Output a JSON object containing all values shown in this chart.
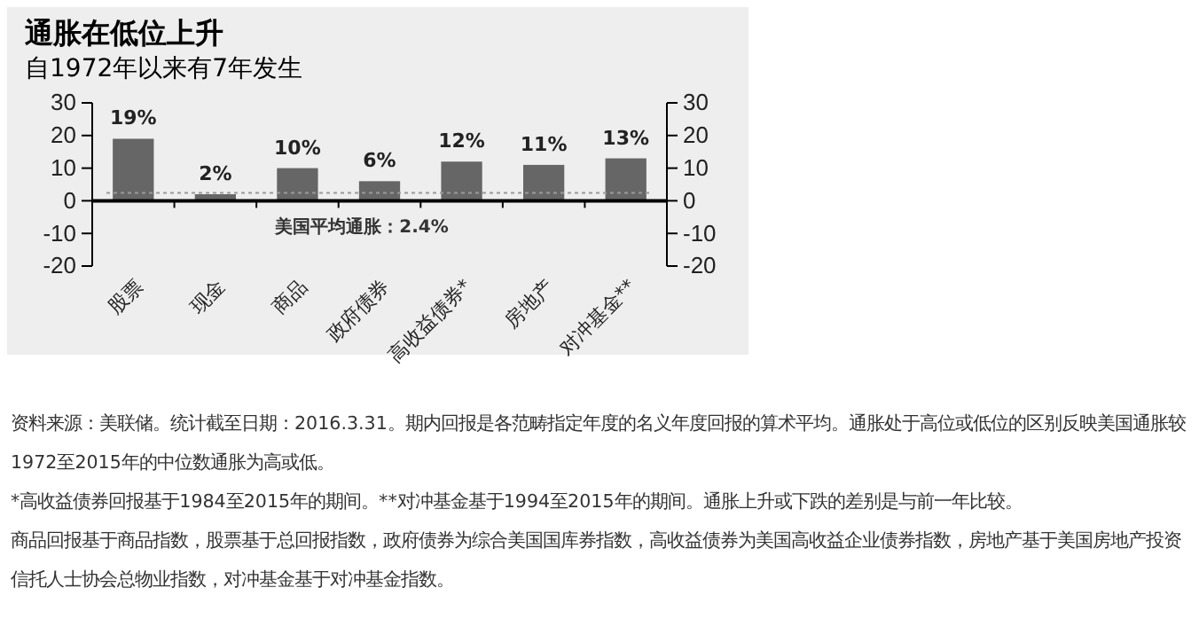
{
  "chart_data": {
    "type": "bar",
    "title": "通胀在低位上升",
    "subtitle": "自1972年以来有7年发生",
    "categories": [
      "股票",
      "现金",
      "商品",
      "政府债券",
      "高收益债券*",
      "房地产",
      "对冲基金**"
    ],
    "values": [
      19,
      2,
      10,
      6,
      12,
      11,
      13
    ],
    "value_labels": [
      "19%",
      "2%",
      "10%",
      "6%",
      "12%",
      "11%",
      "13%"
    ],
    "color": "#666666",
    "ylim": [
      -20,
      30
    ],
    "yticks": [
      -20,
      -10,
      0,
      10,
      20,
      30
    ],
    "y2lim": [
      -20,
      30
    ],
    "y2ticks": [
      -20,
      -10,
      0,
      10,
      20,
      30
    ],
    "ref_lines": [
      {
        "axis": "y",
        "value": 2.4,
        "label": "美国平均通胀：2.4%",
        "color": "#999999",
        "line_style": "dotted"
      }
    ],
    "annotations": [
      "资料来源：美联储。统计截至日期：2016.3.31。期内回报是各范畴指定年度的名义年度回报的算术平均。通胀处于高位或低位的区别反映美国通胀较1972至2015年的中位数通胀为高或低。",
      "*高收益债券回报基于1984至2015年的期间。**对冲基金基于1994至2015年的期间。通胀上升或下跌的差别是与前一年比较。",
      "商品回报基于商品指数，股票基于总回报指数，政府债券为综合美国国库券指数，高收益债券为美国高收益企业债券指数，房地产基于美国房地产投资信托人士协会总物业指数，对冲基金基于对冲基金指数。"
    ]
  }
}
